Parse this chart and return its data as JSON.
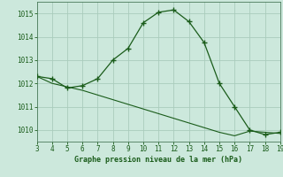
{
  "x": [
    3,
    4,
    5,
    6,
    7,
    8,
    9,
    10,
    11,
    12,
    13,
    14,
    15,
    16,
    17,
    18,
    19
  ],
  "y_curve": [
    1012.3,
    1012.2,
    1011.8,
    1011.9,
    1012.2,
    1013.0,
    1013.5,
    1014.6,
    1015.05,
    1015.15,
    1014.65,
    1013.75,
    1012.0,
    1011.0,
    1010.0,
    1009.8,
    1009.9
  ],
  "y_line": [
    1012.3,
    1012.0,
    1011.85,
    1011.7,
    1011.5,
    1011.3,
    1011.1,
    1010.9,
    1010.7,
    1010.5,
    1010.3,
    1010.1,
    1009.9,
    1009.75,
    1009.95,
    1009.9,
    1009.85
  ],
  "xlim": [
    3,
    19
  ],
  "ylim": [
    1009.5,
    1015.5
  ],
  "yticks": [
    1010,
    1011,
    1012,
    1013,
    1014,
    1015
  ],
  "xticks": [
    3,
    4,
    5,
    6,
    7,
    8,
    9,
    10,
    11,
    12,
    13,
    14,
    15,
    16,
    17,
    18,
    19
  ],
  "xlabel": "Graphe pression niveau de la mer (hPa)",
  "line_color": "#1a5c1a",
  "bg_color": "#cce8dc",
  "grid_color": "#aaccbc",
  "label_color": "#1a5c1a",
  "axis_color": "#4a7a5a"
}
